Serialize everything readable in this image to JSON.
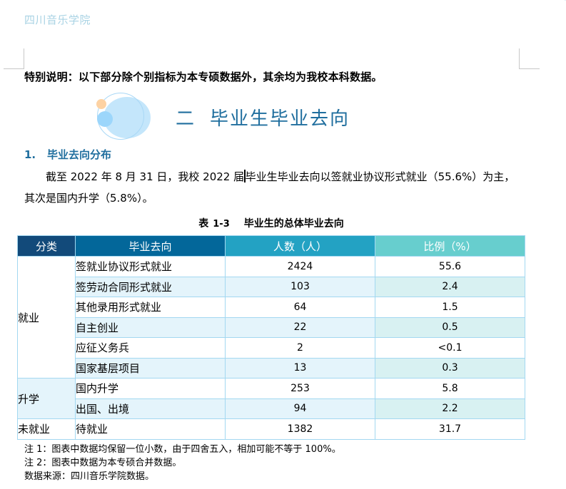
{
  "header": {
    "school_name": "四川音乐学院"
  },
  "special_note": "特别说明：以下部分除个别指标为本专硕数据外，其余均为我校本科数据。",
  "chapter": {
    "number": "二",
    "title": "毕业生毕业去向"
  },
  "section": {
    "number": "1.",
    "title": "毕业去向分布"
  },
  "paragraph": {
    "before_caret": "截至 2022 年 8 月 31 日，我校 2022 届",
    "after_caret": "毕业生毕业去向以签就业协议形式就业（55.6%）为主，其次是国内升学（5.8%）。"
  },
  "table": {
    "caption_prefix": "表",
    "caption_number": "1-3",
    "caption_title": "毕业生的总体毕业去向",
    "headers": [
      "分类",
      "毕业去向",
      "人数（人）",
      "比例（%）"
    ],
    "header_colors": [
      "#124a7a",
      "#03679a",
      "#23a2c3",
      "#67cece"
    ],
    "groups": [
      {
        "category": "就业",
        "rows": [
          {
            "destination": "签就业协议形式就业",
            "count": "2424",
            "ratio": "55.6"
          },
          {
            "destination": "签劳动合同形式就业",
            "count": "103",
            "ratio": "2.4"
          },
          {
            "destination": "其他录用形式就业",
            "count": "64",
            "ratio": "1.5"
          },
          {
            "destination": "自主创业",
            "count": "22",
            "ratio": "0.5"
          },
          {
            "destination": "应征义务兵",
            "count": "2",
            "ratio": "<0.1"
          },
          {
            "destination": "国家基层项目",
            "count": "13",
            "ratio": "0.3"
          }
        ]
      },
      {
        "category": "升学",
        "rows": [
          {
            "destination": "国内升学",
            "count": "253",
            "ratio": "5.8"
          },
          {
            "destination": "出国、出境",
            "count": "94",
            "ratio": "2.2"
          }
        ]
      },
      {
        "category": "未就业",
        "rows": [
          {
            "destination": "待就业",
            "count": "1382",
            "ratio": "31.7"
          }
        ]
      }
    ]
  },
  "footnotes": [
    "注 1：图表中数据均保留一位小数，由于四舍五入，相加可能不等于 100%。",
    "注 2：图表中数据为本专硕合并数据。",
    "数据来源：四川音乐学院数据。"
  ],
  "colors": {
    "accent_blue": "#1f6e9e",
    "header_text": "#a9d3e4",
    "table_border": "#a3d8f1"
  }
}
